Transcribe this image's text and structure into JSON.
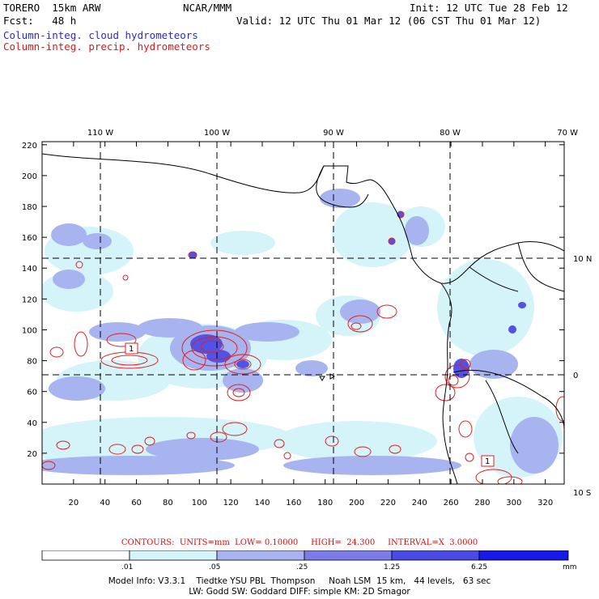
{
  "header": {
    "model": "TORERO  15km ARW",
    "org": "NCAR/MMM",
    "init": "Init: 12 UTC Tue 28 Feb 12",
    "fcst": "Fcst:   48 h",
    "valid": "Valid: 12 UTC Thu 01 Mar 12 (06 CST Thu 01 Mar 12)",
    "field1": "Column-integ. cloud hydrometeors",
    "field2": "Column-integ. precip. hydrometeors"
  },
  "map": {
    "lon_labels": [
      "110 W",
      "100 W",
      "90 W",
      "80 W",
      "70 W"
    ],
    "lat_labels": [
      "10 N",
      "0",
      "10 S"
    ],
    "x_ticks": [
      "20",
      "40",
      "60",
      "80",
      "100",
      "120",
      "140",
      "160",
      "180",
      "200",
      "220",
      "240",
      "260",
      "280",
      "300",
      "320"
    ],
    "y_ticks": [
      "20",
      "40",
      "60",
      "80",
      "100",
      "120",
      "140",
      "160",
      "180",
      "200",
      "220"
    ],
    "contour_labels": [
      "1",
      "1"
    ]
  },
  "contours_text": "CONTOURS:  UNITS=mm  LOW= 0.10000     HIGH=  24.300     INTERVAL=X  3.0000",
  "colorbar": {
    "labels": [
      ".01",
      ".05",
      ".25",
      "1.25",
      "6.25"
    ],
    "unit": "mm",
    "colors": [
      "#ffffff",
      "#d4f4fa",
      "#a8b4f0",
      "#7c7ce8",
      "#4a4ae4",
      "#1818e8"
    ]
  },
  "model_info": {
    "line1": "Model Info: V3.3.1    Tiedtke YSU PBL  Thompson     Noah LSM  15 km,   44 levels,   63 sec",
    "line2": "LW: Godd SW: Goddard DIFF: simple KM: 2D Smagor"
  }
}
